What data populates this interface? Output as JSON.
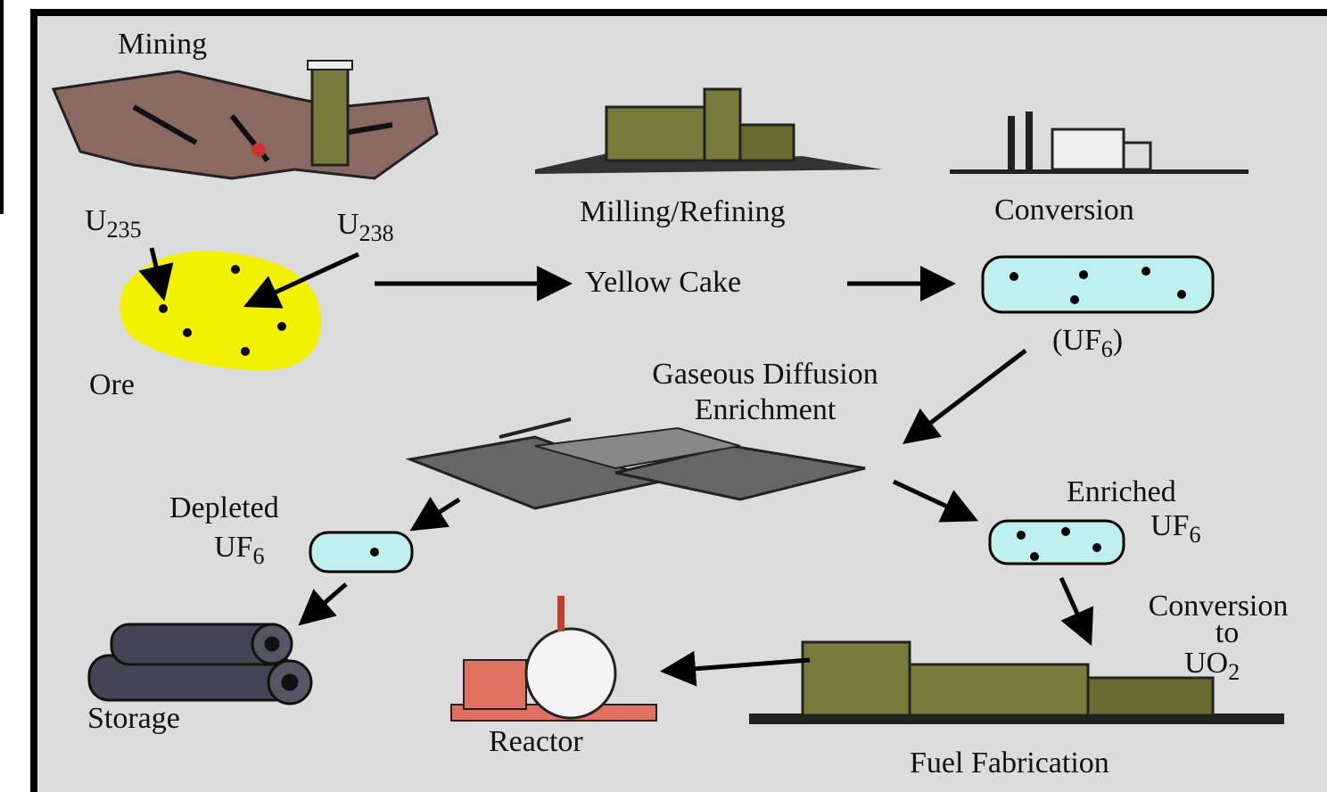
{
  "labels": {
    "mining": "Mining",
    "u235": {
      "base": "U",
      "sub": "235"
    },
    "u238": {
      "base": "U",
      "sub": "238"
    },
    "ore": "Ore",
    "milling": "Milling/Refining",
    "conversion": "Conversion",
    "yellow_cake": "Yellow Cake",
    "uf6": {
      "before": "(UF",
      "sub": "6",
      "after": ")"
    },
    "gaseous_diffusion": [
      "Gaseous Diffusion",
      "Enrichment"
    ],
    "depleted": {
      "line1": "Depleted",
      "base": "UF",
      "sub": "6"
    },
    "enriched": {
      "line1": "Enriched",
      "base": "UF",
      "sub": "6"
    },
    "conversion_uo2": {
      "line1": "Conversion",
      "line2": "to",
      "base": "UO",
      "sub": "2"
    },
    "storage": "Storage",
    "reactor": "Reactor",
    "fuel_fabrication": "Fuel Fabrication"
  }
}
